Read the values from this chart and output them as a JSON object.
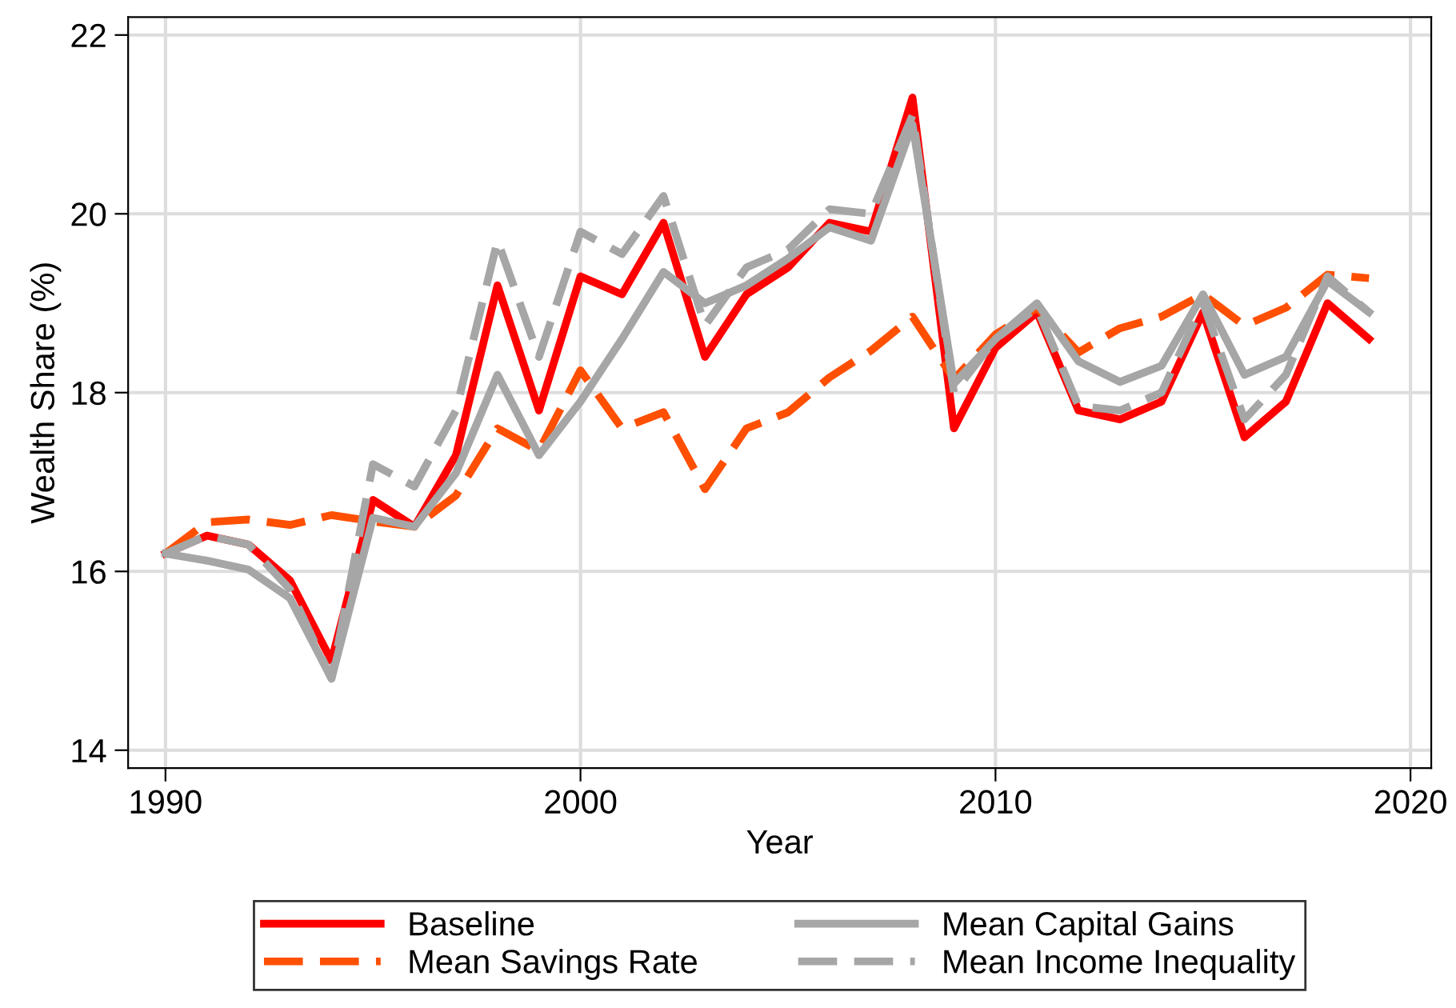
{
  "chart_data": {
    "type": "line",
    "xlabel": "Year",
    "ylabel": "Wealth Share (%)",
    "x": [
      1990,
      1991,
      1992,
      1993,
      1994,
      1995,
      1996,
      1997,
      1998,
      1999,
      2000,
      2001,
      2002,
      2003,
      2004,
      2005,
      2006,
      2007,
      2008,
      2009,
      2010,
      2011,
      2012,
      2013,
      2014,
      2015,
      2016,
      2017,
      2018,
      2019
    ],
    "series": [
      {
        "name": "Baseline",
        "color": "#ff0000",
        "line_style": "solid",
        "values": [
          16.2,
          16.4,
          16.3,
          15.9,
          15.0,
          16.8,
          16.5,
          17.3,
          19.2,
          17.8,
          19.3,
          19.1,
          19.9,
          18.4,
          19.1,
          19.4,
          19.9,
          19.8,
          21.3,
          17.6,
          18.5,
          18.9,
          17.8,
          17.7,
          17.9,
          18.9,
          17.5,
          17.9,
          19.0,
          18.6
        ]
      },
      {
        "name": "Mean Savings Rate",
        "color": "#ff4f00",
        "line_style": "dashed",
        "values": [
          16.2,
          16.55,
          16.58,
          16.52,
          16.63,
          16.56,
          16.5,
          16.85,
          17.6,
          17.35,
          18.25,
          17.6,
          17.78,
          16.92,
          17.6,
          17.78,
          18.17,
          18.47,
          18.85,
          18.15,
          18.65,
          18.95,
          18.45,
          18.72,
          18.85,
          19.1,
          18.75,
          18.95,
          19.32,
          19.28
        ]
      },
      {
        "name": "Mean Capital Gains",
        "color": "#a6a6a6",
        "line_style": "solid",
        "values": [
          16.2,
          16.12,
          16.02,
          15.7,
          14.8,
          16.6,
          16.5,
          17.1,
          18.2,
          17.3,
          17.9,
          18.6,
          19.35,
          19.0,
          19.2,
          19.5,
          19.85,
          19.7,
          21.0,
          18.1,
          18.6,
          19.0,
          18.35,
          18.12,
          18.3,
          19.1,
          18.2,
          18.4,
          19.25,
          18.9
        ]
      },
      {
        "name": "Mean Income Inequality",
        "color": "#a6a6a6",
        "line_style": "dashed",
        "values": [
          16.2,
          16.4,
          16.3,
          15.8,
          14.8,
          17.2,
          16.95,
          17.8,
          19.7,
          18.4,
          19.8,
          19.55,
          20.2,
          18.75,
          19.4,
          19.6,
          20.05,
          20.0,
          21.1,
          18.0,
          18.6,
          18.95,
          17.85,
          17.8,
          18.0,
          19.0,
          17.7,
          18.2,
          19.3,
          18.9
        ]
      }
    ],
    "xlim": [
      1989.1,
      2020.5
    ],
    "xticks": [
      1990,
      2000,
      2010,
      2020
    ],
    "ylim": [
      13.8,
      22.2
    ],
    "yticks": [
      14,
      16,
      18,
      20,
      22
    ],
    "grid": true,
    "legend": "bottom"
  }
}
